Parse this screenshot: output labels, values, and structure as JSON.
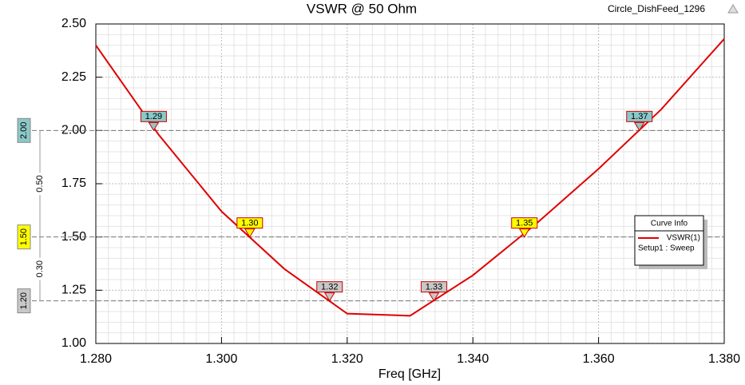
{
  "chart_data": {
    "type": "line",
    "title": "VSWR @ 50 Ohm",
    "project": "Circle_DishFeed_1296",
    "x_label": "Freq [GHz]",
    "x": [
      1.28,
      1.29,
      1.3,
      1.31,
      1.32,
      1.33,
      1.34,
      1.35,
      1.36,
      1.37,
      1.38
    ],
    "series": [
      {
        "name": "VSWR(1)",
        "color": "#e00000",
        "values": [
          2.4,
          1.98,
          1.62,
          1.35,
          1.14,
          1.13,
          1.32,
          1.56,
          1.82,
          2.1,
          2.43
        ]
      }
    ],
    "xlim": [
      1.28,
      1.38
    ],
    "xticks": [
      {
        "value": 1.28,
        "label": "1.280"
      },
      {
        "value": 1.3,
        "label": "1.300"
      },
      {
        "value": 1.32,
        "label": "1.320"
      },
      {
        "value": 1.34,
        "label": "1.340"
      },
      {
        "value": 1.36,
        "label": "1.360"
      },
      {
        "value": 1.38,
        "label": "1.380"
      }
    ],
    "ylim": [
      1.0,
      2.5
    ],
    "yticks": [
      {
        "value": 1.0,
        "label": "1.00"
      },
      {
        "value": 1.25,
        "label": "1.25"
      },
      {
        "value": 1.5,
        "label": "1.50"
      },
      {
        "value": 1.75,
        "label": "1.75"
      },
      {
        "value": 2.0,
        "label": "2.00"
      },
      {
        "value": 2.25,
        "label": "2.25"
      },
      {
        "value": 2.5,
        "label": "2.50"
      }
    ],
    "grid": true,
    "legend": {
      "title": "Curve Info",
      "subtitle": "Setup1 : Sweep",
      "position": "right"
    },
    "hlines": [
      {
        "value": 2.0,
        "label": "2.00",
        "color": "#8cc8c8"
      },
      {
        "value": 1.5,
        "label": "1.50",
        "color": "#ffff00"
      },
      {
        "value": 1.2,
        "label": "1.20",
        "color": "#c8c8c8"
      }
    ],
    "deltas": [
      {
        "value": 0.5,
        "label": "0.50"
      },
      {
        "value": 0.3,
        "label": "0.30"
      }
    ],
    "markers": [
      {
        "x": 1.2892,
        "y": 2.0,
        "label": "1.29",
        "color": "#8cc8c8"
      },
      {
        "x": 1.3045,
        "y": 1.5,
        "label": "1.30",
        "color": "#ffff00"
      },
      {
        "x": 1.3172,
        "y": 1.2,
        "label": "1.32",
        "color": "#c8c8c8"
      },
      {
        "x": 1.3338,
        "y": 1.2,
        "label": "1.33",
        "color": "#c8c8c8"
      },
      {
        "x": 1.3482,
        "y": 1.5,
        "label": "1.35",
        "color": "#ffff00"
      },
      {
        "x": 1.3665,
        "y": 2.0,
        "label": "1.37",
        "color": "#8cc8c8"
      }
    ]
  }
}
